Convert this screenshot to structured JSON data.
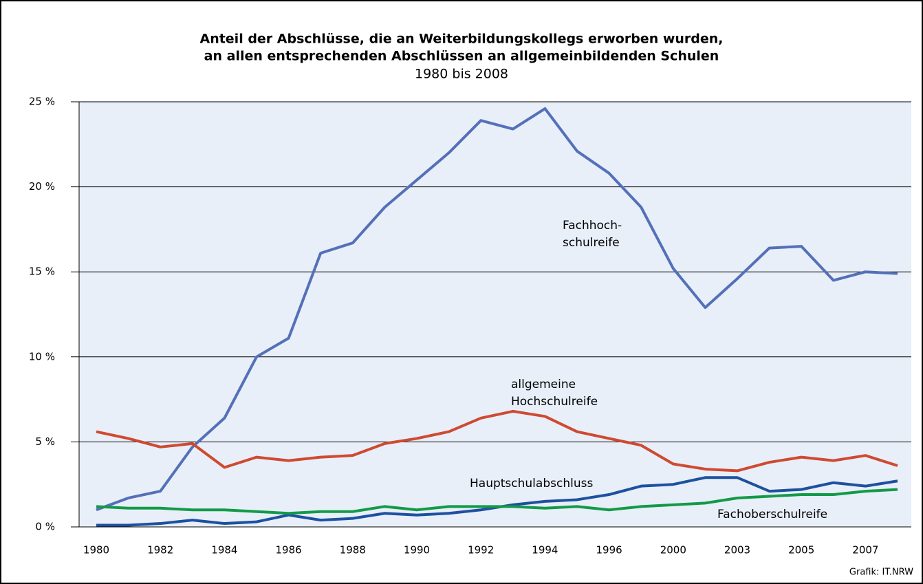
{
  "chart_data": {
    "type": "line",
    "title": [
      "Anteil der Abschlüsse, die an Weiterbildungskollegs erworben wurden,",
      "an allen entsprechenden Abschlüssen an allgemeinbildenden Schulen"
    ],
    "subtitle": "1980 bis 2008",
    "source": "Grafik: IT.NRW",
    "categories": [
      "1980",
      null,
      "1982",
      null,
      "1984",
      null,
      "1986",
      null,
      "1988",
      null,
      "1990",
      null,
      "1992",
      null,
      "1994",
      null,
      "1996",
      null,
      "2000",
      null,
      "2003",
      null,
      "2005",
      null,
      "2007",
      null
    ],
    "ylim": [
      0,
      25
    ],
    "yticks": [
      {
        "value": 0,
        "label": "0 %"
      },
      {
        "value": 5,
        "label": "5 %"
      },
      {
        "value": 10,
        "label": "10 %"
      },
      {
        "value": 15,
        "label": "15 %"
      },
      {
        "value": 20,
        "label": "20 %"
      },
      {
        "value": 25,
        "label": "25 %"
      }
    ],
    "grid": true,
    "series": [
      {
        "name": [
          "Fachhoch-",
          "schulreife"
        ],
        "color": "#5470b8",
        "values": [
          1.0,
          1.7,
          2.1,
          4.7,
          6.4,
          10.0,
          11.1,
          16.1,
          16.7,
          18.8,
          20.4,
          22.0,
          23.9,
          23.4,
          24.6,
          22.1,
          20.8,
          18.8,
          15.2,
          12.9,
          14.6,
          16.4,
          16.5,
          14.5,
          15.0,
          14.9
        ]
      },
      {
        "name": [
          "allgemeine",
          "Hochschulreife"
        ],
        "color": "#cf4a32",
        "values": [
          5.6,
          5.2,
          4.7,
          4.9,
          3.5,
          4.1,
          3.9,
          4.1,
          4.2,
          4.9,
          5.2,
          5.6,
          6.4,
          6.8,
          6.5,
          5.6,
          5.2,
          4.8,
          3.7,
          3.4,
          3.3,
          3.8,
          4.1,
          3.9,
          4.2,
          3.6
        ]
      },
      {
        "name": "Hauptschulabschluss",
        "color": "#1e50a0",
        "values": [
          0.1,
          0.1,
          0.2,
          0.4,
          0.2,
          0.3,
          0.7,
          0.4,
          0.5,
          0.8,
          0.7,
          0.8,
          1.0,
          1.3,
          1.5,
          1.6,
          1.9,
          2.4,
          2.5,
          2.9,
          2.9,
          2.1,
          2.2,
          2.6,
          2.4,
          2.7
        ]
      },
      {
        "name": "Fachoberschulreife",
        "color": "#139a48",
        "values": [
          1.2,
          1.1,
          1.1,
          1.0,
          1.0,
          0.9,
          0.8,
          0.9,
          0.9,
          1.2,
          1.0,
          1.2,
          1.2,
          1.2,
          1.1,
          1.2,
          1.0,
          1.2,
          1.3,
          1.4,
          1.7,
          1.8,
          1.9,
          1.9,
          2.1,
          2.2
        ]
      }
    ]
  }
}
